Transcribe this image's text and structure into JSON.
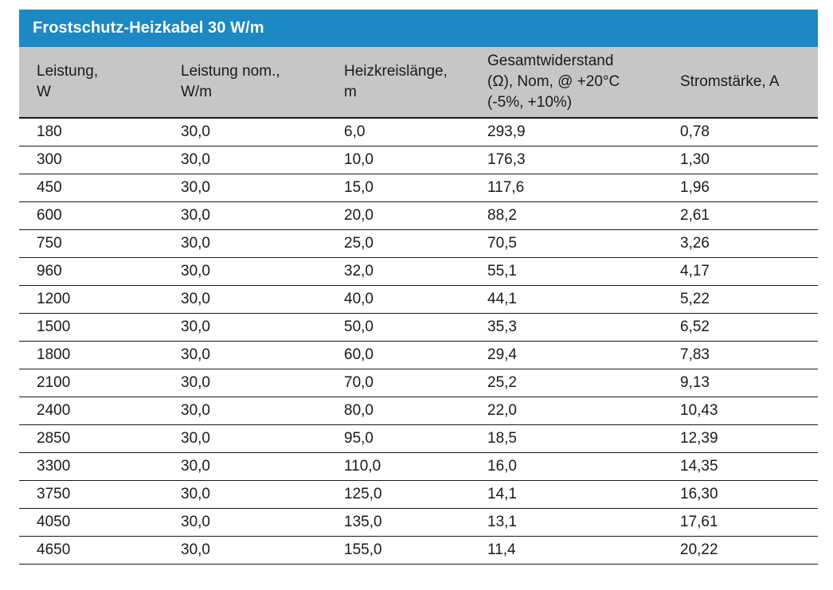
{
  "table": {
    "title": "Frostschutz-Heizkabel 30 W/m",
    "columns": [
      {
        "label": "Leistung,\nW"
      },
      {
        "label": "Leistung nom.,\nW/m"
      },
      {
        "label": "Heizkreislänge,\nm"
      },
      {
        "label": "Gesamtwiderstand\n(Ω), Nom, @ +20°C\n(-5%, +10%)"
      },
      {
        "label": "Stromstärke, A"
      }
    ],
    "rows": [
      [
        "180",
        "30,0",
        "6,0",
        "293,9",
        "0,78"
      ],
      [
        "300",
        "30,0",
        "10,0",
        "176,3",
        "1,30"
      ],
      [
        "450",
        "30,0",
        "15,0",
        "117,6",
        "1,96"
      ],
      [
        "600",
        "30,0",
        "20,0",
        "88,2",
        "2,61"
      ],
      [
        "750",
        "30,0",
        "25,0",
        "70,5",
        "3,26"
      ],
      [
        "960",
        "30,0",
        "32,0",
        "55,1",
        "4,17"
      ],
      [
        "1200",
        "30,0",
        "40,0",
        "44,1",
        "5,22"
      ],
      [
        "1500",
        "30,0",
        "50,0",
        "35,3",
        "6,52"
      ],
      [
        "1800",
        "30,0",
        "60,0",
        "29,4",
        "7,83"
      ],
      [
        "2100",
        "30,0",
        "70,0",
        "25,2",
        "9,13"
      ],
      [
        "2400",
        "30,0",
        "80,0",
        "22,0",
        "10,43"
      ],
      [
        "2850",
        "30,0",
        "95,0",
        "18,5",
        "12,39"
      ],
      [
        "3300",
        "30,0",
        "110,0",
        "16,0",
        "14,35"
      ],
      [
        "3750",
        "30,0",
        "125,0",
        "14,1",
        "16,30"
      ],
      [
        "4050",
        "30,0",
        "135,0",
        "13,1",
        "17,61"
      ],
      [
        "4650",
        "30,0",
        "155,0",
        "11,4",
        "20,22"
      ]
    ]
  },
  "colors": {
    "title_bar": "#1c88c4",
    "header_bg": "#c6c6c6",
    "text": "#1a1a1a",
    "title_text": "#ffffff",
    "row_line": "#1a1a1a",
    "page_bg": "#ffffff"
  }
}
